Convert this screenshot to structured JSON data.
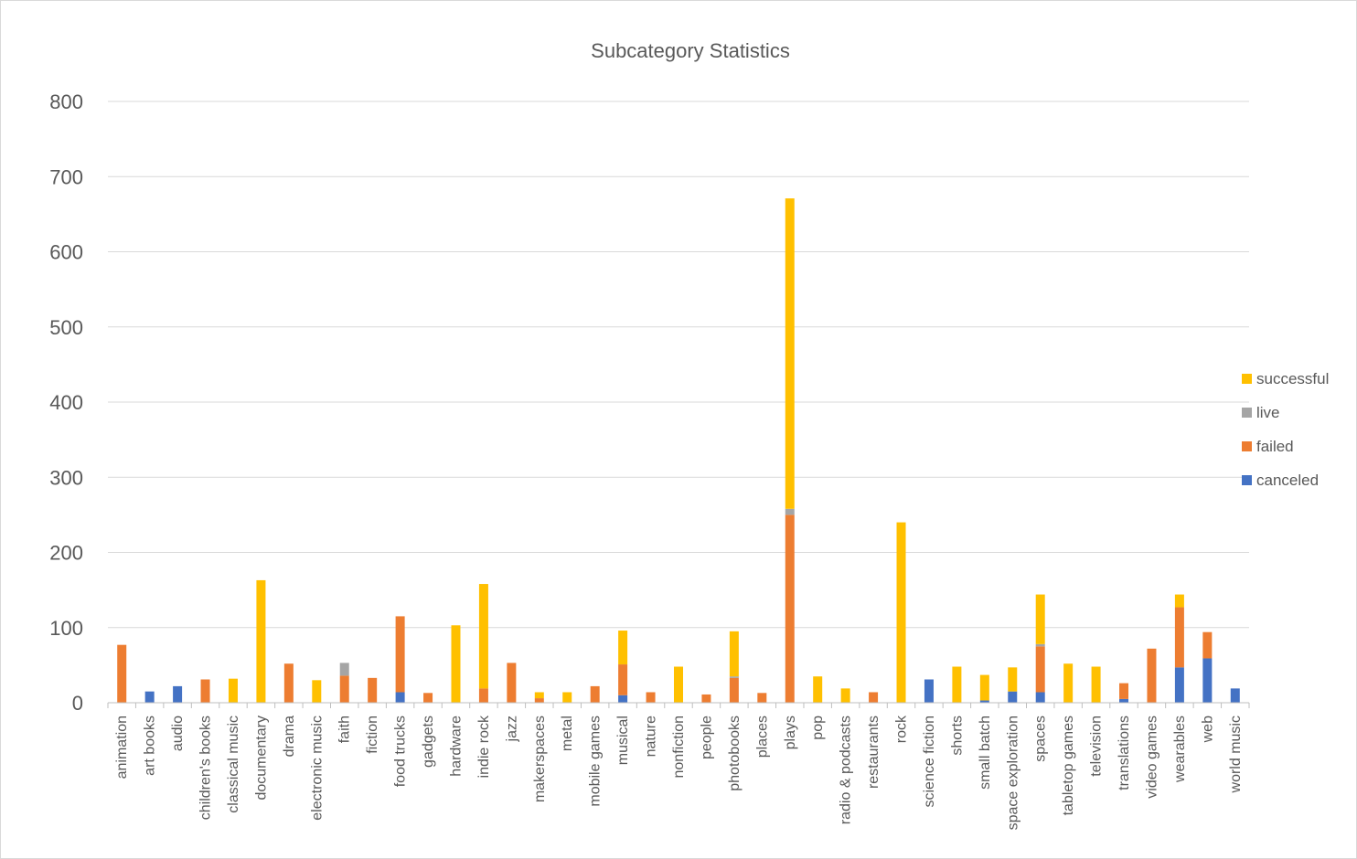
{
  "chart_data": {
    "type": "bar",
    "stacked": true,
    "title": "Subcategory Statistics",
    "xlabel": "",
    "ylabel": "",
    "ylim": [
      0,
      800
    ],
    "yticks": [
      0,
      100,
      200,
      300,
      400,
      500,
      600,
      700,
      800
    ],
    "grid": true,
    "legend_position": "right",
    "categories": [
      "animation",
      "art books",
      "audio",
      "children's books",
      "classical music",
      "documentary",
      "drama",
      "electronic music",
      "faith",
      "fiction",
      "food trucks",
      "gadgets",
      "hardware",
      "indie rock",
      "jazz",
      "makerspaces",
      "metal",
      "mobile games",
      "musical",
      "nature",
      "nonfiction",
      "people",
      "photobooks",
      "places",
      "plays",
      "pop",
      "radio & podcasts",
      "restaurants",
      "rock",
      "science fiction",
      "shorts",
      "small batch",
      "space exploration",
      "spaces",
      "tabletop games",
      "television",
      "translations",
      "video games",
      "wearables",
      "web",
      "world music"
    ],
    "series": [
      {
        "name": "canceled",
        "color": "#4472c4",
        "values": [
          0,
          15,
          22,
          0,
          0,
          0,
          0,
          0,
          0,
          0,
          14,
          0,
          0,
          0,
          0,
          0,
          0,
          0,
          10,
          0,
          0,
          0,
          0,
          0,
          0,
          0,
          0,
          0,
          0,
          31,
          0,
          3,
          15,
          14,
          0,
          0,
          5,
          0,
          47,
          59,
          19
        ]
      },
      {
        "name": "failed",
        "color": "#ed7d31",
        "values": [
          77,
          0,
          0,
          31,
          0,
          0,
          52,
          0,
          36,
          33,
          101,
          13,
          0,
          19,
          53,
          6,
          0,
          22,
          41,
          14,
          0,
          11,
          33,
          13,
          250,
          0,
          0,
          14,
          0,
          0,
          0,
          0,
          0,
          61,
          0,
          0,
          21,
          72,
          80,
          35,
          0
        ]
      },
      {
        "name": "live",
        "color": "#a5a5a5",
        "values": [
          0,
          0,
          0,
          0,
          0,
          0,
          0,
          0,
          17,
          0,
          0,
          0,
          0,
          0,
          0,
          0,
          0,
          0,
          0,
          0,
          0,
          0,
          2,
          0,
          8,
          0,
          0,
          0,
          0,
          0,
          0,
          0,
          0,
          3,
          0,
          0,
          0,
          0,
          0,
          0,
          0
        ]
      },
      {
        "name": "successful",
        "color": "#ffc000",
        "values": [
          0,
          0,
          0,
          0,
          32,
          163,
          0,
          30,
          0,
          0,
          0,
          0,
          103,
          139,
          0,
          8,
          14,
          0,
          45,
          0,
          48,
          0,
          60,
          0,
          413,
          35,
          19,
          0,
          240,
          0,
          48,
          34,
          32,
          66,
          52,
          48,
          0,
          0,
          17,
          0,
          0
        ]
      }
    ],
    "legend_order": [
      "successful",
      "live",
      "failed",
      "canceled"
    ]
  }
}
